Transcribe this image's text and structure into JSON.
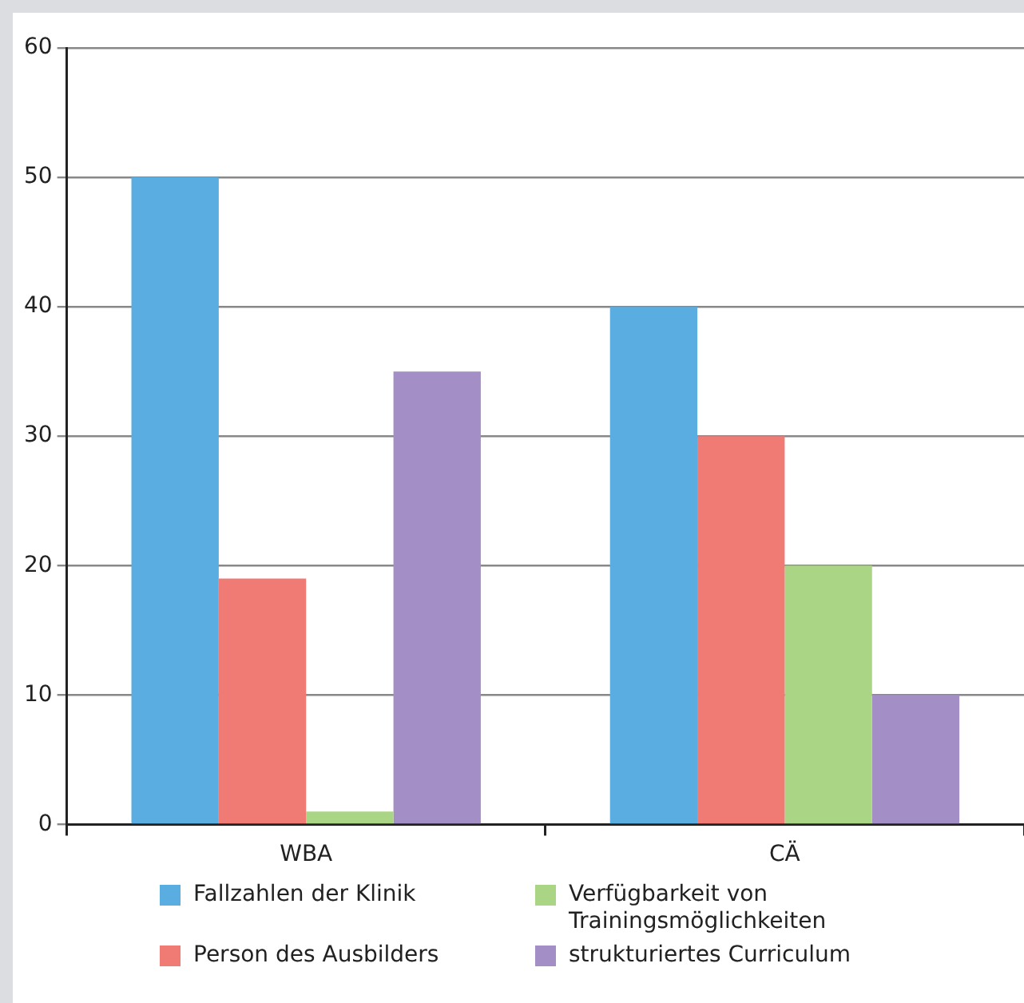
{
  "chart_data": {
    "type": "bar",
    "categories": [
      "WBA",
      "CÄ"
    ],
    "series": [
      {
        "name": "Fallzahlen der Klinik",
        "color": "#5aade0",
        "values": [
          50,
          40
        ]
      },
      {
        "name": "Person des Ausbilders",
        "color": "#f07a74",
        "values": [
          19,
          30
        ]
      },
      {
        "name": "Verfügbarkeit von Trainingsmöglichkeiten",
        "color": "#aad585",
        "values": [
          1,
          20
        ]
      },
      {
        "name": "strukturiertes Curriculum",
        "color": "#a38fc6",
        "values": [
          35,
          10
        ]
      }
    ],
    "ylim": [
      0,
      60
    ],
    "yticks": [
      0,
      10,
      20,
      30,
      40,
      50,
      60
    ],
    "grid": "y",
    "legend": "bottom"
  }
}
